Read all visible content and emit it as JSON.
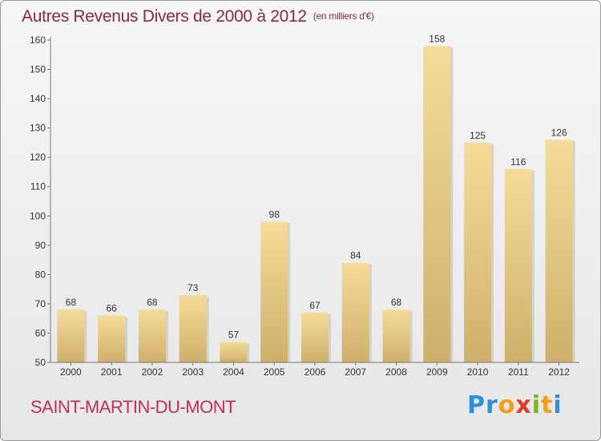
{
  "title": {
    "main": "Autres Revenus Divers de 2000 à 2012",
    "unit": "(en milliers d'€)"
  },
  "place": "SAINT-MARTIN-DU-MONT",
  "logo": {
    "text": "Proxiti",
    "letters": [
      {
        "ch": "P",
        "color": "#2f8fd8"
      },
      {
        "ch": "r",
        "color": "#2f8fd8"
      },
      {
        "ch": "o",
        "color": "#f39c1a"
      },
      {
        "ch": "x",
        "color": "#e23b2e"
      },
      {
        "ch": "i",
        "color": "#7cb32b"
      },
      {
        "ch": "t",
        "color": "#f39c1a"
      },
      {
        "ch": "i",
        "color": "#2f8fd8"
      }
    ]
  },
  "colors": {
    "bar_light": "#f6dc98",
    "bar_dark": "#cdb06a",
    "title": "#8a2a3d",
    "place": "#c0305a"
  },
  "chart_data": {
    "type": "bar",
    "categories": [
      "2000",
      "2001",
      "2002",
      "2003",
      "2004",
      "2005",
      "2006",
      "2007",
      "2008",
      "2009",
      "2010",
      "2011",
      "2012"
    ],
    "values": [
      68,
      66,
      68,
      73,
      57,
      98,
      67,
      84,
      68,
      158,
      125,
      116,
      126
    ],
    "ylim": [
      50,
      160
    ],
    "yticks": [
      50,
      60,
      70,
      80,
      90,
      100,
      110,
      120,
      130,
      140,
      150,
      160
    ],
    "grid": false,
    "data_labels": true
  }
}
